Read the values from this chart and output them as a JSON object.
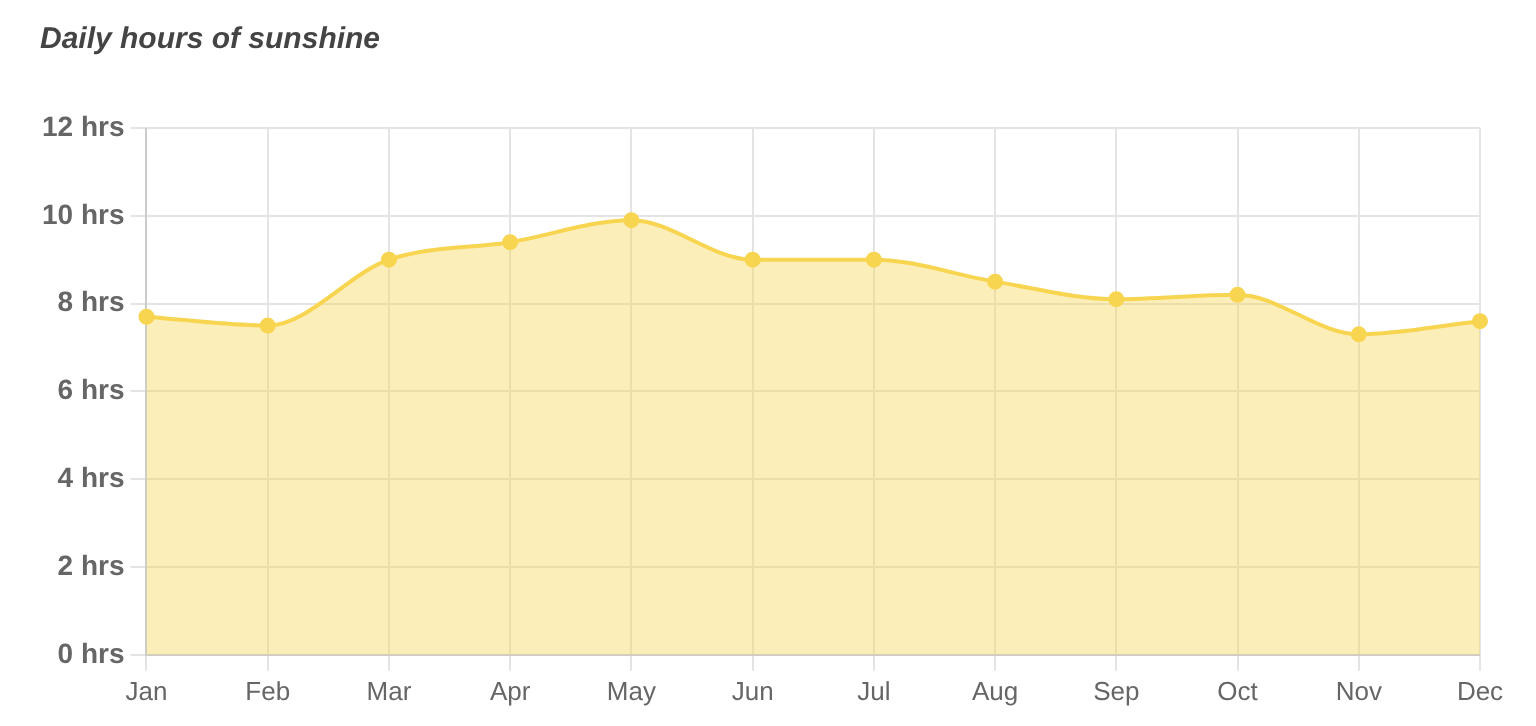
{
  "chart_data": {
    "type": "area",
    "title": "Daily hours of sunshine",
    "categories": [
      "Jan",
      "Feb",
      "Mar",
      "Apr",
      "May",
      "Jun",
      "Jul",
      "Aug",
      "Sep",
      "Oct",
      "Nov",
      "Dec"
    ],
    "series": [
      {
        "color": "#f8d550",
        "values": [
          7.7,
          7.5,
          9.0,
          9.4,
          9.9,
          9.0,
          9.0,
          8.5,
          8.1,
          8.2,
          7.3,
          7.6
        ]
      }
    ],
    "ylim": [
      0,
      12
    ],
    "yticks": [
      {
        "value": 0,
        "label": "0 hrs"
      },
      {
        "value": 2,
        "label": "2 hrs"
      },
      {
        "value": 4,
        "label": "4 hrs"
      },
      {
        "value": 6,
        "label": "6 hrs"
      },
      {
        "value": 8,
        "label": "8 hrs"
      },
      {
        "value": 10,
        "label": "10 hrs"
      },
      {
        "value": 12,
        "label": "12 hrs"
      }
    ],
    "grid": true,
    "legend": false,
    "marker": "circle"
  }
}
